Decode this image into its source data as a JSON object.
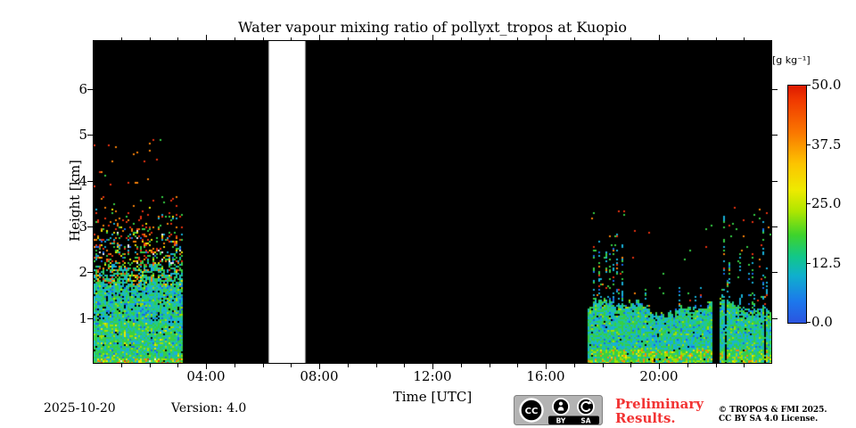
{
  "figure": {
    "title": "Water vapour mixing ratio of pollyxt_tropos at Kuopio"
  },
  "axes": {
    "xlabel": "Time [UTC]",
    "ylabel": "Height [km]"
  },
  "footer": {
    "date": "2025-10-20",
    "version": "Version: 4.0",
    "preliminary_line1": "Preliminary",
    "preliminary_line2": "Results.",
    "copyright_line1": "© TROPOS & FMI 2025.",
    "copyright_line2": "CC BY SA 4.0 License.",
    "cc_badge": {
      "cc": "CC",
      "by": "BY",
      "sa": "SA"
    }
  },
  "colors": {
    "preliminary_red": "#f23333",
    "plot_background": "#000000",
    "missing_data": "#ffffff"
  },
  "chart_data": {
    "type": "heatmap",
    "title": "Water vapour mixing ratio of pollyxt_tropos at Kuopio",
    "xlabel": "Time [UTC]",
    "ylabel": "Height [km]",
    "x_range_hours": [
      0,
      24
    ],
    "y_range_km": [
      0,
      7.03
    ],
    "x_major_ticks": [
      {
        "h": 4,
        "label": "04:00"
      },
      {
        "h": 8,
        "label": "08:00"
      },
      {
        "h": 12,
        "label": "12:00"
      },
      {
        "h": 16,
        "label": "16:00"
      },
      {
        "h": 20,
        "label": "20:00"
      }
    ],
    "x_minor_tick_every_h": 1,
    "y_ticks": [
      {
        "km": 1,
        "label": "1"
      },
      {
        "km": 2,
        "label": "2"
      },
      {
        "km": 3,
        "label": "3"
      },
      {
        "km": 4,
        "label": "4"
      },
      {
        "km": 5,
        "label": "5"
      },
      {
        "km": 6,
        "label": "6"
      }
    ],
    "colorbar": {
      "unit_label": "[g kg⁻¹]",
      "min": 0,
      "max": 50,
      "colormap": "jet",
      "ticks": [
        {
          "v": 50,
          "label": "50.0"
        },
        {
          "v": 37.5,
          "label": "37.5"
        },
        {
          "v": 25,
          "label": "25.0"
        },
        {
          "v": 12.5,
          "label": "12.5"
        },
        {
          "v": 0,
          "label": "0.0"
        }
      ],
      "gradient": [
        [
          "0%",
          "#dd1a00"
        ],
        [
          "6%",
          "#f03800"
        ],
        [
          "20%",
          "#fa7800"
        ],
        [
          "33%",
          "#fcc400"
        ],
        [
          "44%",
          "#eeea00"
        ],
        [
          "53%",
          "#aee600"
        ],
        [
          "63%",
          "#3ed32c"
        ],
        [
          "72%",
          "#12c788"
        ],
        [
          "80%",
          "#0fb0cc"
        ],
        [
          "91%",
          "#1c78ec"
        ],
        [
          "100%",
          "#2b55e0"
        ]
      ]
    },
    "missing_data_white_h": [
      6.2,
      7.5
    ],
    "measurement_segments": [
      {
        "type": "decaying_profile",
        "start_h": 0.0,
        "end_h": 3.1,
        "dense_top_km": 2.2,
        "sparse_top_km": 4.9,
        "description": "moist layer near surface (~10-15 g/kg), noise speckle thinning with height"
      },
      {
        "type": "boundary_layer",
        "start_h": 17.48,
        "end_h": 24.0,
        "layer_top_km": 1.25,
        "spike_top_km": 3.3,
        "black_gaps_h": [
          [
            21.9,
            22.12
          ]
        ],
        "spike_windows_h": [
          [
            17.48,
            18.85
          ],
          [
            22.15,
            24.0
          ]
        ],
        "description": "evening boundary layer ~1.2 km with narrow vertical plumes to ~3 km"
      }
    ],
    "render": {
      "seed": 20251020,
      "colors": {
        "red": "#e83210",
        "orange": "#f8820a",
        "yellow": "#eee600",
        "yellowgreen": "#a0e000",
        "green": "#36cf45",
        "teal": "#20c892",
        "cyan": "#18b0d8",
        "blue": "#1868e8",
        "white": "#f0f0f0"
      }
    }
  }
}
